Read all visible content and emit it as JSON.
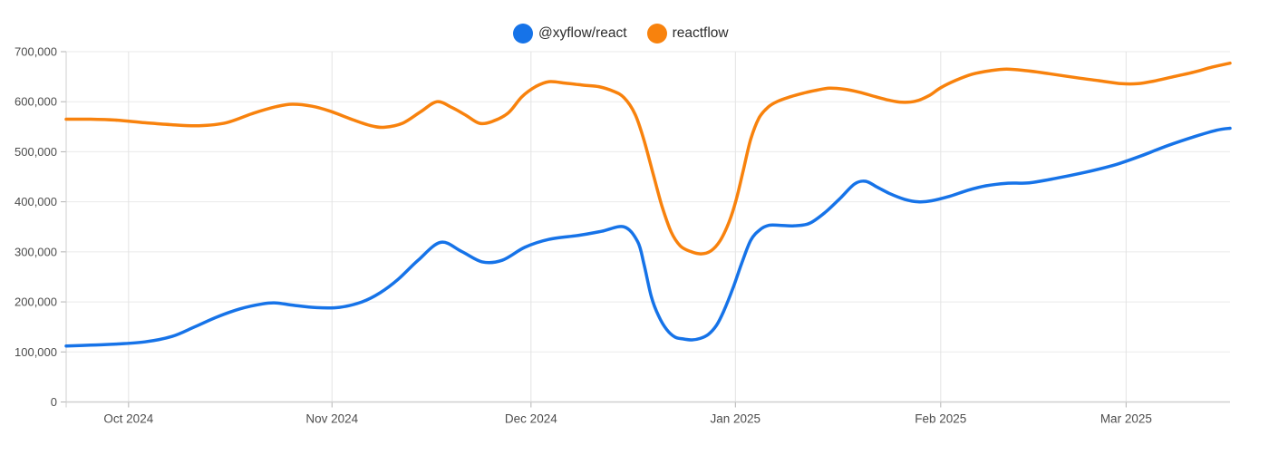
{
  "page": {
    "background": "#ffffff"
  },
  "legend": {
    "items": [
      {
        "label": "@xyflow/react",
        "color": "#1673e8"
      },
      {
        "label": "reactflow",
        "color": "#f8820d"
      }
    ]
  },
  "axis_style": {
    "axis_line_color": "#cfcfcf",
    "h_grid_color": "#eaeaea",
    "v_grid_color": "#e3e3e3",
    "tick_mark_color": "#b3b3b3",
    "tick_label_color": "#4d4d4d",
    "tick_font_size": 13
  },
  "chart_data": {
    "type": "line",
    "title": "",
    "xlabel": "",
    "ylabel": "",
    "grid": true,
    "legend_position": "top-center",
    "ylim": [
      0,
      700000
    ],
    "y_ticks": [
      {
        "value": 0,
        "label": "0"
      },
      {
        "value": 100000,
        "label": "100,000"
      },
      {
        "value": 200000,
        "label": "200,000"
      },
      {
        "value": 300000,
        "label": "300,000"
      },
      {
        "value": 400000,
        "label": "400,000"
      },
      {
        "value": 500000,
        "label": "500,000"
      },
      {
        "value": 600000,
        "label": "600,000"
      },
      {
        "value": 700000,
        "label": "700,000"
      }
    ],
    "x_ticks": [
      {
        "label": "Oct 2024",
        "t": 0.0536
      },
      {
        "label": "Nov 2024",
        "t": 0.2284
      },
      {
        "label": "Dec 2024",
        "t": 0.3994
      },
      {
        "label": "Jan 2025",
        "t": 0.575
      },
      {
        "label": "Feb 2025",
        "t": 0.7514
      },
      {
        "label": "Mar 2025",
        "t": 0.9107
      }
    ],
    "series": [
      {
        "name": "@xyflow/react",
        "color": "#1673e8",
        "points": [
          [
            0.0,
            112000
          ],
          [
            0.021,
            113500
          ],
          [
            0.0443,
            116000
          ],
          [
            0.0676,
            120000
          ],
          [
            0.0909,
            131000
          ],
          [
            0.1103,
            150000
          ],
          [
            0.1298,
            170000
          ],
          [
            0.1492,
            186000
          ],
          [
            0.1686,
            196000
          ],
          [
            0.1803,
            198000
          ],
          [
            0.1958,
            193000
          ],
          [
            0.2152,
            188500
          ],
          [
            0.2347,
            189000
          ],
          [
            0.2541,
            200000
          ],
          [
            0.2696,
            218000
          ],
          [
            0.2852,
            245000
          ],
          [
            0.3023,
            283000
          ],
          [
            0.3217,
            319000
          ],
          [
            0.3396,
            301000
          ],
          [
            0.3574,
            280000
          ],
          [
            0.3745,
            283000
          ],
          [
            0.394,
            309000
          ],
          [
            0.4149,
            325000
          ],
          [
            0.4406,
            333000
          ],
          [
            0.46,
            341000
          ],
          [
            0.4794,
            350000
          ],
          [
            0.4911,
            320000
          ],
          [
            0.4965,
            275000
          ],
          [
            0.5027,
            211000
          ],
          [
            0.509,
            172000
          ],
          [
            0.5159,
            145000
          ],
          [
            0.5229,
            130000
          ],
          [
            0.5299,
            126000
          ],
          [
            0.5377,
            124000
          ],
          [
            0.5447,
            127000
          ],
          [
            0.5517,
            135000
          ],
          [
            0.5587,
            153000
          ],
          [
            0.5649,
            181000
          ],
          [
            0.5727,
            226000
          ],
          [
            0.5804,
            277000
          ],
          [
            0.5882,
            323000
          ],
          [
            0.596,
            344000
          ],
          [
            0.6038,
            353000
          ],
          [
            0.6131,
            353000
          ],
          [
            0.6255,
            352000
          ],
          [
            0.6387,
            357000
          ],
          [
            0.6527,
            380000
          ],
          [
            0.6659,
            409000
          ],
          [
            0.6776,
            436000
          ],
          [
            0.6869,
            441000
          ],
          [
            0.697,
            429000
          ],
          [
            0.7071,
            417000
          ],
          [
            0.7203,
            405000
          ],
          [
            0.7319,
            400000
          ],
          [
            0.7436,
            402000
          ],
          [
            0.7591,
            411000
          ],
          [
            0.7747,
            423000
          ],
          [
            0.7902,
            432000
          ],
          [
            0.8081,
            437000
          ],
          [
            0.8275,
            438000
          ],
          [
            0.8485,
            446000
          ],
          [
            0.8757,
            459000
          ],
          [
            0.9014,
            474000
          ],
          [
            0.9239,
            492000
          ],
          [
            0.9472,
            513000
          ],
          [
            0.9705,
            531000
          ],
          [
            0.9884,
            543000
          ],
          [
            1.0,
            547000
          ]
        ]
      },
      {
        "name": "reactflow",
        "color": "#f8820d",
        "points": [
          [
            0.0,
            565000
          ],
          [
            0.021,
            565000
          ],
          [
            0.0443,
            563000
          ],
          [
            0.0676,
            558000
          ],
          [
            0.0909,
            554000
          ],
          [
            0.1142,
            552000
          ],
          [
            0.1375,
            558000
          ],
          [
            0.1608,
            577000
          ],
          [
            0.1803,
            590000
          ],
          [
            0.1942,
            595000
          ],
          [
            0.2113,
            591000
          ],
          [
            0.2269,
            581000
          ],
          [
            0.2463,
            564000
          ],
          [
            0.2618,
            552000
          ],
          [
            0.2735,
            549000
          ],
          [
            0.289,
            557000
          ],
          [
            0.3046,
            580000
          ],
          [
            0.3186,
            600000
          ],
          [
            0.3318,
            588000
          ],
          [
            0.3434,
            573000
          ],
          [
            0.3551,
            557000
          ],
          [
            0.3667,
            561000
          ],
          [
            0.38,
            578000
          ],
          [
            0.3916,
            610000
          ],
          [
            0.4033,
            630000
          ],
          [
            0.4149,
            640000
          ],
          [
            0.4289,
            637000
          ],
          [
            0.4444,
            633000
          ],
          [
            0.4577,
            630000
          ],
          [
            0.4701,
            621000
          ],
          [
            0.4794,
            608000
          ],
          [
            0.4888,
            575000
          ],
          [
            0.4965,
            523000
          ],
          [
            0.5043,
            456000
          ],
          [
            0.5121,
            390000
          ],
          [
            0.5198,
            340000
          ],
          [
            0.5276,
            312000
          ],
          [
            0.5361,
            301000
          ],
          [
            0.5455,
            296000
          ],
          [
            0.554,
            302000
          ],
          [
            0.5618,
            322000
          ],
          [
            0.5696,
            360000
          ],
          [
            0.5758,
            405000
          ],
          [
            0.582,
            465000
          ],
          [
            0.5882,
            525000
          ],
          [
            0.5952,
            567000
          ],
          [
            0.603,
            589000
          ],
          [
            0.6115,
            601000
          ],
          [
            0.6224,
            610000
          ],
          [
            0.6333,
            617000
          ],
          [
            0.6449,
            623000
          ],
          [
            0.6558,
            627000
          ],
          [
            0.6682,
            625000
          ],
          [
            0.6814,
            619000
          ],
          [
            0.6954,
            610000
          ],
          [
            0.7071,
            603000
          ],
          [
            0.7179,
            599000
          ],
          [
            0.7296,
            601000
          ],
          [
            0.7413,
            612000
          ],
          [
            0.7514,
            628000
          ],
          [
            0.7646,
            643000
          ],
          [
            0.7786,
            655000
          ],
          [
            0.7941,
            662000
          ],
          [
            0.8081,
            665000
          ],
          [
            0.8252,
            662000
          ],
          [
            0.8446,
            656000
          ],
          [
            0.8679,
            648000
          ],
          [
            0.8873,
            642000
          ],
          [
            0.9068,
            636000
          ],
          [
            0.9208,
            636000
          ],
          [
            0.934,
            641000
          ],
          [
            0.9534,
            651000
          ],
          [
            0.9689,
            659000
          ],
          [
            0.9845,
            669000
          ],
          [
            1.0,
            677000
          ]
        ]
      }
    ]
  }
}
